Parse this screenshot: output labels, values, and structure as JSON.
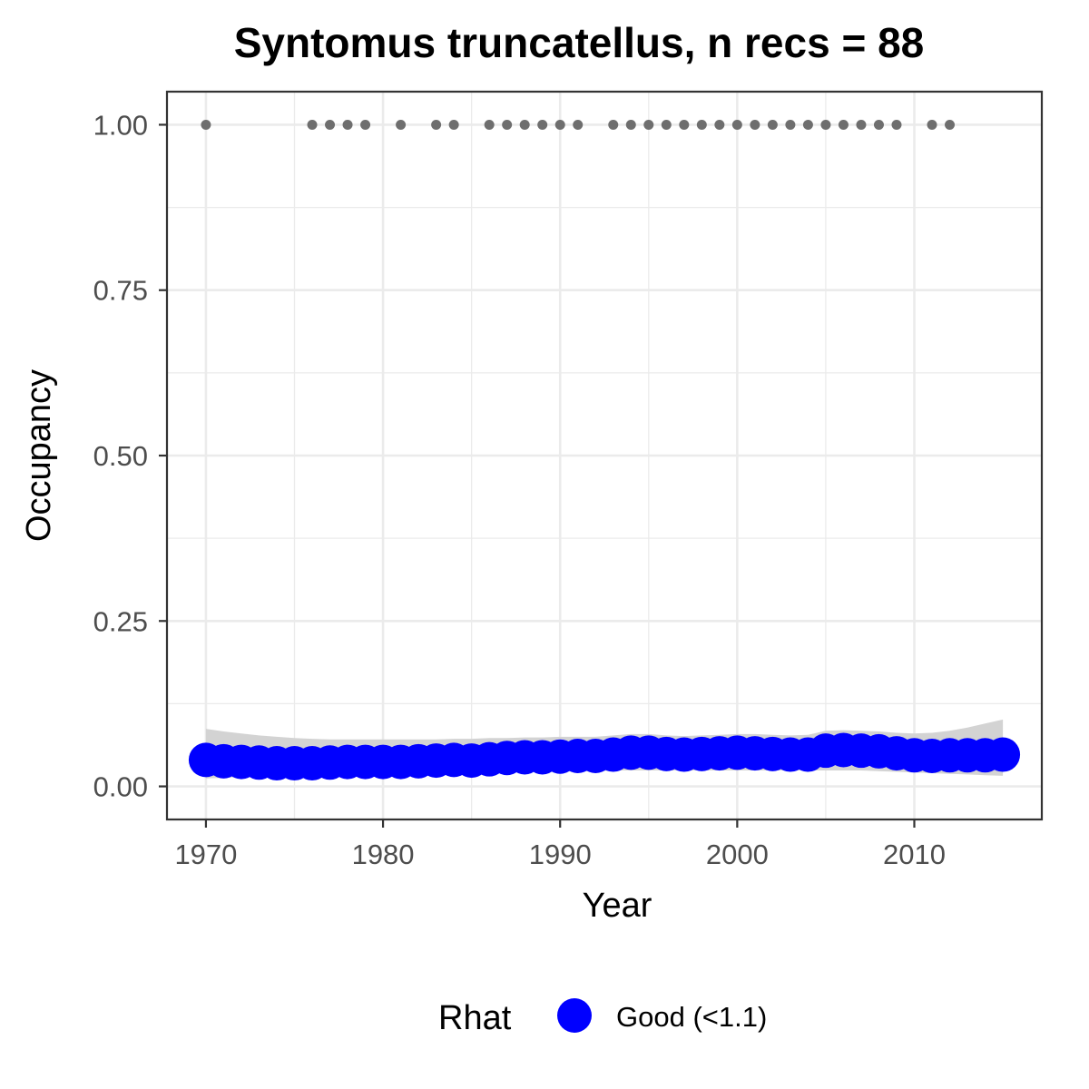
{
  "chart_data": {
    "type": "scatter",
    "title": "Syntomus truncatellus, n recs = 88",
    "xlabel": "Year",
    "ylabel": "Occupancy",
    "xlim": [
      1967.8,
      2017.2
    ],
    "ylim": [
      -0.05,
      1.05
    ],
    "x_ticks": [
      1970,
      1980,
      1990,
      2000,
      2010
    ],
    "x_tick_labels": [
      "1970",
      "1980",
      "1990",
      "2000",
      "2010"
    ],
    "y_ticks": [
      0,
      0.25,
      0.5,
      0.75,
      1
    ],
    "y_tick_labels": [
      "0.00",
      "0.25",
      "0.50",
      "0.75",
      "1.00"
    ],
    "grid": true,
    "legend": {
      "title": "Rhat",
      "position": "bottom",
      "entries": [
        {
          "label": "Good (<1.1)",
          "color": "#0000ff"
        }
      ]
    },
    "colors": {
      "occupancy": "#0000ff",
      "records": "#6e6e6e",
      "ribbon": "#d3d3d3",
      "grid": "#ebebeb",
      "border": "#333333"
    },
    "series": [
      {
        "role": "records",
        "x": [
          1970,
          1976,
          1977,
          1978,
          1979,
          1981,
          1983,
          1984,
          1986,
          1987,
          1988,
          1989,
          1990,
          1991,
          1993,
          1994,
          1995,
          1996,
          1997,
          1998,
          1999,
          2000,
          2001,
          2002,
          2003,
          2004,
          2005,
          2006,
          2007,
          2008,
          2009,
          2011,
          2012
        ],
        "y": [
          1,
          1,
          1,
          1,
          1,
          1,
          1,
          1,
          1,
          1,
          1,
          1,
          1,
          1,
          1,
          1,
          1,
          1,
          1,
          1,
          1,
          1,
          1,
          1,
          1,
          1,
          1,
          1,
          1,
          1,
          1,
          1,
          1
        ]
      },
      {
        "role": "occupancy",
        "name": "Good (<1.1)",
        "x": [
          1970,
          1971,
          1972,
          1973,
          1974,
          1975,
          1976,
          1977,
          1978,
          1979,
          1980,
          1981,
          1982,
          1983,
          1984,
          1985,
          1986,
          1987,
          1988,
          1989,
          1990,
          1991,
          1992,
          1993,
          1994,
          1995,
          1996,
          1997,
          1998,
          1999,
          2000,
          2001,
          2002,
          2003,
          2004,
          2005,
          2006,
          2007,
          2008,
          2009,
          2010,
          2011,
          2012,
          2013,
          2014,
          2015
        ],
        "y": [
          0.04,
          0.038,
          0.037,
          0.036,
          0.035,
          0.035,
          0.035,
          0.036,
          0.037,
          0.037,
          0.037,
          0.037,
          0.038,
          0.039,
          0.04,
          0.039,
          0.041,
          0.043,
          0.044,
          0.044,
          0.045,
          0.046,
          0.046,
          0.048,
          0.051,
          0.051,
          0.049,
          0.048,
          0.049,
          0.05,
          0.051,
          0.05,
          0.049,
          0.048,
          0.048,
          0.054,
          0.055,
          0.054,
          0.053,
          0.05,
          0.047,
          0.046,
          0.047,
          0.047,
          0.047,
          0.048
        ],
        "lower": [
          0.012,
          0.013,
          0.014,
          0.014,
          0.015,
          0.015,
          0.016,
          0.016,
          0.017,
          0.017,
          0.018,
          0.018,
          0.019,
          0.019,
          0.02,
          0.02,
          0.021,
          0.021,
          0.022,
          0.022,
          0.022,
          0.023,
          0.023,
          0.024,
          0.024,
          0.024,
          0.024,
          0.024,
          0.024,
          0.024,
          0.024,
          0.024,
          0.024,
          0.024,
          0.024,
          0.024,
          0.024,
          0.024,
          0.023,
          0.022,
          0.021,
          0.02,
          0.019,
          0.018,
          0.017,
          0.016
        ],
        "upper": [
          0.087,
          0.083,
          0.08,
          0.077,
          0.075,
          0.073,
          0.072,
          0.071,
          0.071,
          0.071,
          0.071,
          0.071,
          0.071,
          0.071,
          0.072,
          0.072,
          0.073,
          0.073,
          0.074,
          0.074,
          0.075,
          0.075,
          0.075,
          0.077,
          0.079,
          0.079,
          0.077,
          0.076,
          0.077,
          0.078,
          0.079,
          0.079,
          0.078,
          0.077,
          0.078,
          0.084,
          0.085,
          0.084,
          0.083,
          0.081,
          0.08,
          0.081,
          0.084,
          0.089,
          0.095,
          0.101
        ]
      }
    ]
  }
}
